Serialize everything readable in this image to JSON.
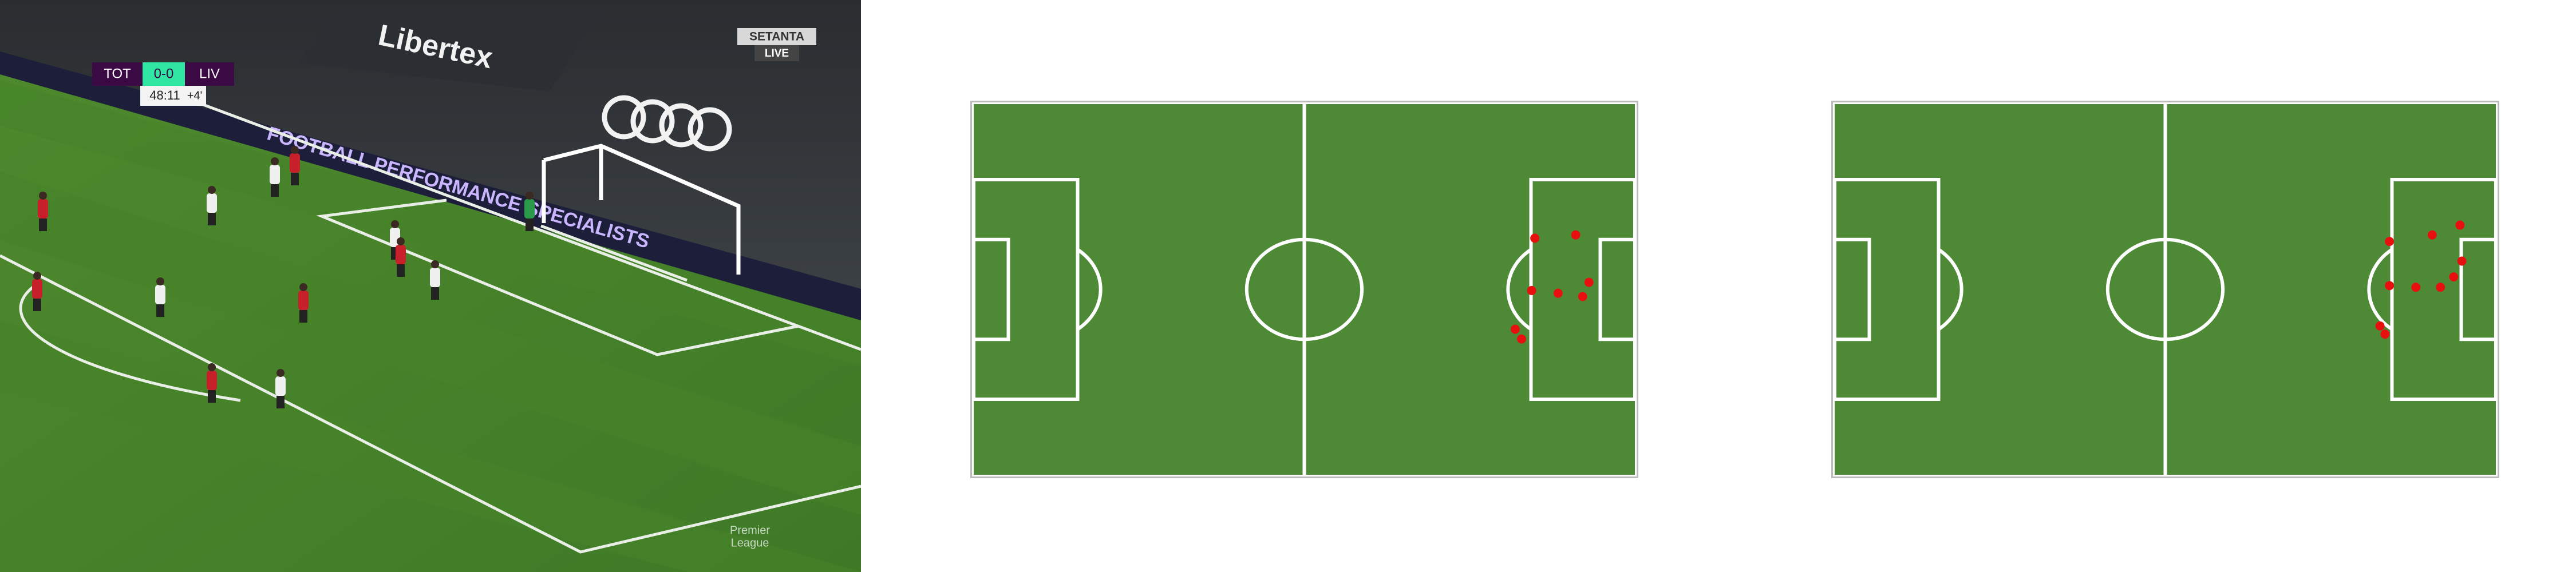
{
  "broadcast": {
    "scoreboard": {
      "home": "TOT",
      "score": "0-0",
      "away": "LIV",
      "clock": "48:11",
      "added": "+4'"
    },
    "channel": {
      "name": "SETANTA",
      "tag": "LIVE"
    },
    "ads": {
      "sponsor": "Libertex",
      "board": "FOOTBALL PERFORMANCE SPECIALISTS"
    },
    "watermark": [
      "Premier",
      "League"
    ]
  },
  "pitches": [
    {
      "players": [
        {
          "x": 89.1,
          "y": 24.6
        },
        {
          "x": 95.6,
          "y": 24.0
        },
        {
          "x": 97.7,
          "y": 32.7
        },
        {
          "x": 96.7,
          "y": 35.3
        },
        {
          "x": 92.8,
          "y": 34.7
        },
        {
          "x": 88.6,
          "y": 34.2
        },
        {
          "x": 86.0,
          "y": 41.3
        },
        {
          "x": 87.0,
          "y": 43.1
        }
      ]
    },
    {
      "players": [
        {
          "x": 88.1,
          "y": 25.2
        },
        {
          "x": 94.9,
          "y": 24.0
        },
        {
          "x": 99.3,
          "y": 22.2
        },
        {
          "x": 99.6,
          "y": 28.8
        },
        {
          "x": 98.3,
          "y": 31.7
        },
        {
          "x": 96.2,
          "y": 33.6
        },
        {
          "x": 92.3,
          "y": 33.6
        },
        {
          "x": 88.1,
          "y": 33.3
        },
        {
          "x": 86.6,
          "y": 40.7
        },
        {
          "x": 87.4,
          "y": 42.2
        }
      ]
    }
  ]
}
